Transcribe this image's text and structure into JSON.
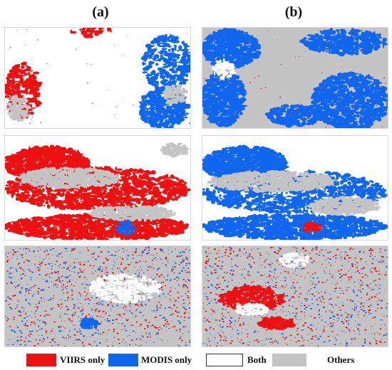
{
  "columns": [
    {
      "label": "(a)"
    },
    {
      "label": "(b)"
    }
  ],
  "panels": [
    {
      "name": "panel-a-1",
      "background": "#ffffff",
      "base_pattern": "sparse"
    },
    {
      "name": "panel-b-1",
      "background": "#c4c4c4",
      "base_pattern": "dense"
    },
    {
      "name": "panel-a-2",
      "background": "#ffffff",
      "base_pattern": "banded"
    },
    {
      "name": "panel-b-2",
      "background": "#ffffff",
      "base_pattern": "banded"
    },
    {
      "name": "panel-a-3",
      "background": "#c4c4c4",
      "base_pattern": "speckled"
    },
    {
      "name": "panel-b-3",
      "background": "#c4c4c4",
      "base_pattern": "speckled"
    }
  ],
  "legend": {
    "items": [
      {
        "label": "VIIRS only",
        "color": "#ee1111"
      },
      {
        "label": "MODIS only",
        "color": "#1166ee"
      },
      {
        "label": "Both",
        "color": "#ffffff"
      },
      {
        "label": "Others",
        "color": "#c4c4c4"
      }
    ]
  },
  "colors": {
    "viirs": "#ee1111",
    "modis": "#1166ee",
    "both": "#ffffff",
    "others": "#c4c4c4"
  }
}
